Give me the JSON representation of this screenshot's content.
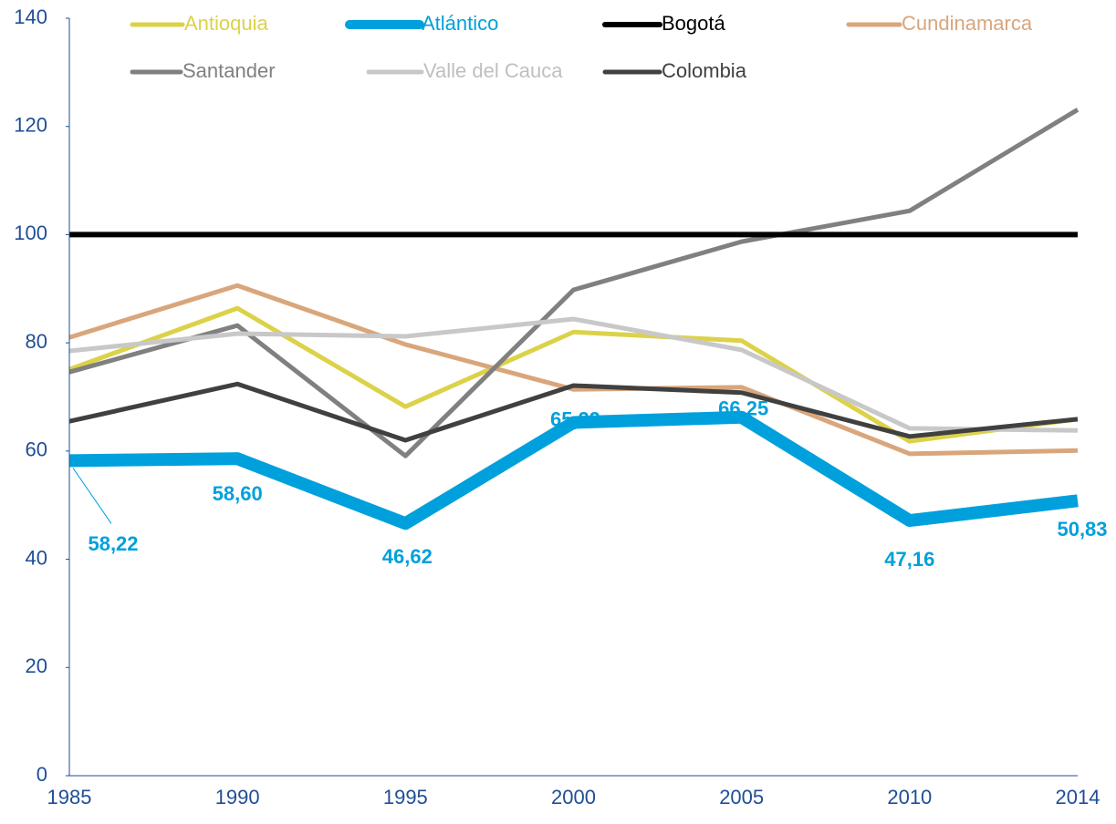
{
  "chart_data": {
    "type": "line",
    "categories": [
      "1985",
      "1990",
      "1995",
      "2000",
      "2005",
      "2010",
      "2014"
    ],
    "ylim": [
      0,
      140
    ],
    "yticks": [
      0,
      20,
      40,
      60,
      80,
      100,
      120,
      140
    ],
    "grid": false,
    "series": [
      {
        "name": "Antioquia",
        "color": "#dcd24a",
        "line_width": 5,
        "values": [
          75.1,
          86.4,
          68.2,
          82.0,
          80.4,
          61.8,
          65.9
        ]
      },
      {
        "name": "Atlántico",
        "color": "#00a0dc",
        "line_width": 14,
        "values": [
          58.22,
          58.6,
          46.62,
          65.29,
          66.25,
          47.16,
          50.83
        ],
        "value_labels": [
          "58,22",
          "58,60",
          "46,62",
          "65,29",
          "66,25",
          "47,16",
          "50,83"
        ]
      },
      {
        "name": "Bogotá",
        "color": "#000000",
        "line_width": 6,
        "values": [
          100,
          100,
          100,
          100,
          100,
          100,
          100
        ]
      },
      {
        "name": "Cundinamarca",
        "color": "#d9a67c",
        "line_width": 5,
        "values": [
          81.0,
          90.6,
          79.7,
          71.4,
          71.8,
          59.5,
          60.1
        ]
      },
      {
        "name": "Santander",
        "color": "#808080",
        "line_width": 5,
        "values": [
          74.6,
          83.2,
          59.1,
          89.8,
          98.7,
          104.4,
          123.1
        ]
      },
      {
        "name": "Valle del Cauca",
        "color": "#c8c8c8",
        "line_width": 5,
        "values": [
          78.5,
          81.7,
          81.2,
          84.4,
          78.7,
          64.2,
          63.8
        ]
      },
      {
        "name": "Colombia",
        "color": "#404040",
        "line_width": 5,
        "values": [
          65.5,
          72.4,
          62.0,
          72.1,
          70.8,
          62.7,
          65.9
        ]
      }
    ]
  }
}
